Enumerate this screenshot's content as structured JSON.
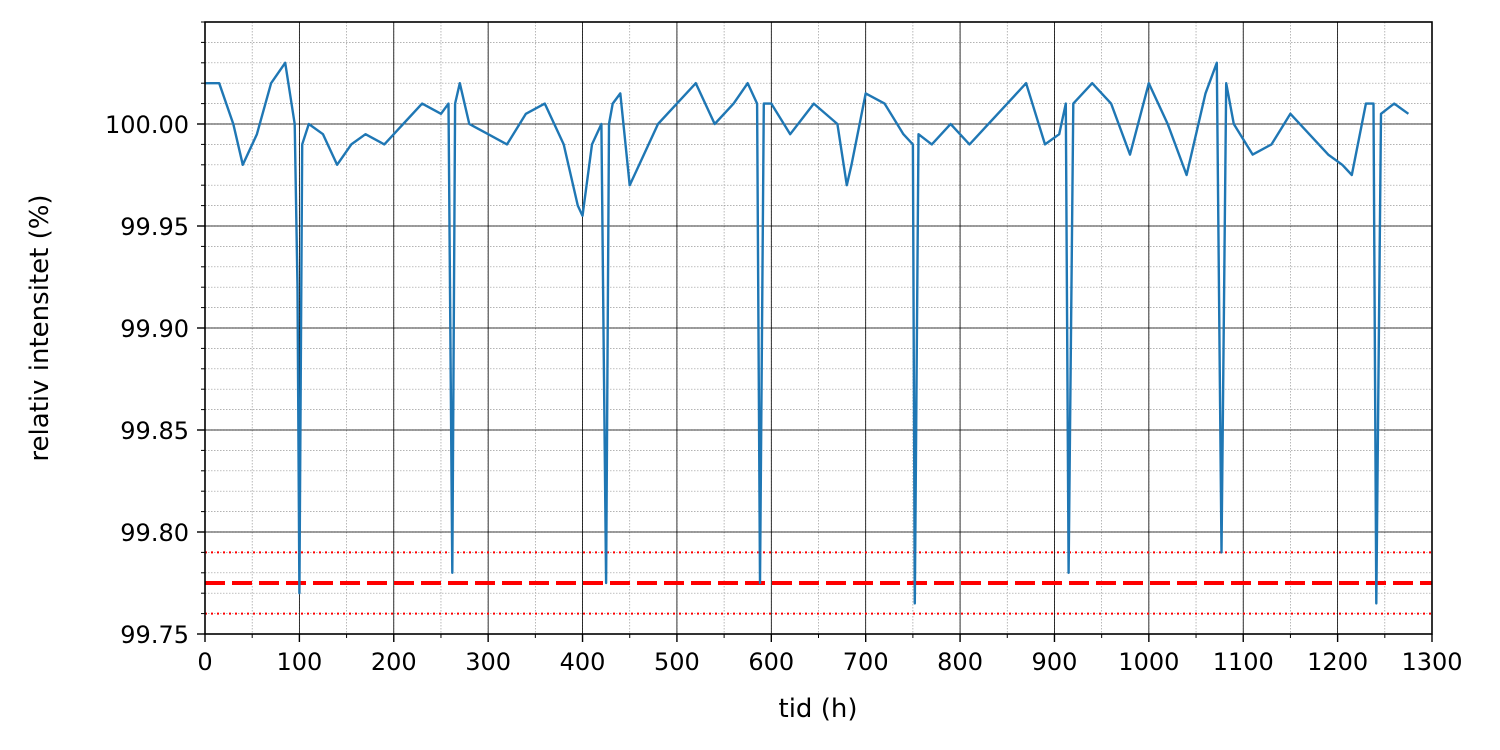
{
  "chart_data": {
    "type": "line",
    "xlabel": "tid (h)",
    "ylabel": "relativ intensitet (%)",
    "xlim": [
      0,
      1300
    ],
    "ylim": [
      99.75,
      100.05
    ],
    "x_ticks": [
      0,
      100,
      200,
      300,
      400,
      500,
      600,
      700,
      800,
      900,
      1000,
      1100,
      1200,
      1300
    ],
    "x_tick_labels": [
      "0",
      "100",
      "200",
      "300",
      "400",
      "500",
      "600",
      "700",
      "800",
      "900",
      "1000",
      "1100",
      "1200",
      "1300"
    ],
    "y_ticks": [
      99.75,
      99.8,
      99.85,
      99.9,
      99.95,
      100.0
    ],
    "y_tick_labels": [
      "99.75",
      "99.80",
      "99.85",
      "99.90",
      "99.95",
      "100.00"
    ],
    "grid": {
      "major": true,
      "minor": true
    },
    "series": [
      {
        "color": "#1f77b4",
        "x": [
          0,
          15,
          30,
          40,
          55,
          70,
          85,
          95,
          98,
          100,
          103,
          110,
          125,
          140,
          155,
          170,
          190,
          210,
          230,
          250,
          258,
          262,
          265,
          270,
          280,
          300,
          320,
          340,
          360,
          380,
          395,
          400,
          410,
          420,
          425,
          428,
          432,
          440,
          450,
          460,
          480,
          500,
          520,
          540,
          560,
          575,
          585,
          588,
          592,
          600,
          620,
          645,
          670,
          680,
          685,
          700,
          720,
          740,
          750,
          752,
          756,
          770,
          790,
          810,
          830,
          850,
          870,
          890,
          905,
          912,
          915,
          920,
          940,
          960,
          980,
          1000,
          1020,
          1040,
          1060,
          1072,
          1077,
          1082,
          1090,
          1110,
          1130,
          1150,
          1170,
          1190,
          1205,
          1215,
          1230,
          1238,
          1241,
          1246,
          1260,
          1275
        ],
        "y": [
          100.02,
          100.02,
          100.0,
          99.98,
          99.995,
          100.02,
          100.03,
          100.0,
          99.92,
          99.77,
          99.99,
          100.0,
          99.995,
          99.98,
          99.99,
          99.995,
          99.99,
          100.0,
          100.01,
          100.005,
          100.01,
          99.78,
          100.01,
          100.02,
          100.0,
          99.995,
          99.99,
          100.005,
          100.01,
          99.99,
          99.96,
          99.955,
          99.99,
          100.0,
          99.775,
          100.0,
          100.01,
          100.015,
          99.97,
          99.98,
          100.0,
          100.01,
          100.02,
          100.0,
          100.01,
          100.02,
          100.01,
          99.775,
          100.01,
          100.01,
          99.995,
          100.01,
          100.0,
          99.97,
          99.98,
          100.015,
          100.01,
          99.995,
          99.99,
          99.765,
          99.995,
          99.99,
          100.0,
          99.99,
          100.0,
          100.01,
          100.02,
          99.99,
          99.995,
          100.01,
          99.78,
          100.01,
          100.02,
          100.01,
          99.985,
          100.02,
          100.0,
          99.975,
          100.015,
          100.03,
          99.79,
          100.02,
          100.0,
          99.985,
          99.99,
          100.005,
          99.995,
          99.985,
          99.98,
          99.975,
          100.01,
          100.01,
          99.765,
          100.005,
          100.01,
          100.005
        ]
      }
    ],
    "reference_lines": [
      {
        "y": 99.775,
        "style": "dashed",
        "color": "#ff0000"
      },
      {
        "y": 99.79,
        "style": "dotted",
        "color": "#ff0000"
      },
      {
        "y": 99.76,
        "style": "dotted",
        "color": "#ff0000"
      }
    ]
  }
}
